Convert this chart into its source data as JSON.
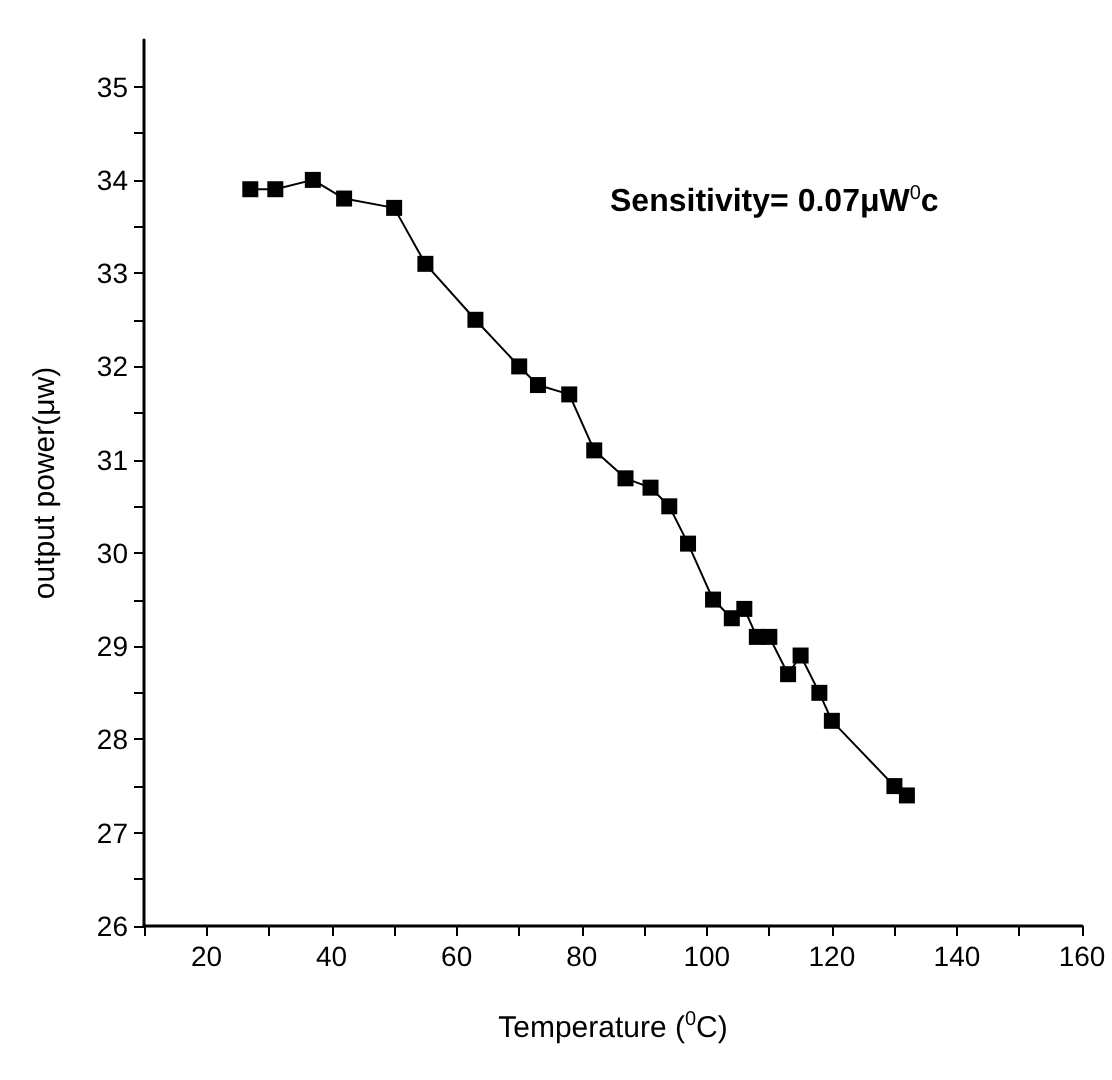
{
  "chart_data": {
    "type": "line",
    "xlabel": "Temperature ($^{0}$C)",
    "ylabel": "output power(μw)",
    "annotations": [
      "Sensitivity= 0.07μW$^{0}$c"
    ],
    "series": [
      {
        "color": "#000000",
        "x": [
          27,
          31,
          37,
          42,
          50,
          55,
          63,
          70,
          73,
          78,
          82,
          87,
          91,
          94,
          97,
          101,
          104,
          106,
          108,
          110,
          113,
          115,
          118,
          120,
          130,
          132
        ],
        "values": [
          33.9,
          33.9,
          34.0,
          33.8,
          33.7,
          33.1,
          32.5,
          32.0,
          31.8,
          31.7,
          31.1,
          30.8,
          30.7,
          30.5,
          30.1,
          29.5,
          29.3,
          29.4,
          29.1,
          29.1,
          28.7,
          28.9,
          28.5,
          28.2,
          27.5,
          27.4
        ]
      }
    ],
    "xlim": [
      10,
      160
    ],
    "ylim": [
      26,
      35.5
    ],
    "xticks": [
      {
        "value": 10,
        "label": null
      },
      20,
      {
        "value": 30,
        "label": null
      },
      40,
      {
        "value": 50,
        "label": null
      },
      60,
      {
        "value": 70,
        "label": null
      },
      80,
      {
        "value": 90,
        "label": null
      },
      100,
      {
        "value": 110,
        "label": null
      },
      120,
      {
        "value": 130,
        "label": null
      },
      140,
      {
        "value": 150,
        "label": null
      },
      160
    ],
    "yticks": [
      26,
      {
        "value": 26.5,
        "label": null
      },
      27,
      {
        "value": 27.5,
        "label": null
      },
      28,
      {
        "value": 28.5,
        "label": null
      },
      29,
      {
        "value": 29.5,
        "label": null
      },
      30,
      {
        "value": 30.5,
        "label": null
      },
      31,
      {
        "value": 31.5,
        "label": null
      },
      32,
      {
        "value": 32.5,
        "label": null
      },
      33,
      {
        "value": 33.5,
        "label": null
      },
      34,
      {
        "value": 34.5,
        "label": null
      },
      35
    ],
    "grid": false,
    "marker": "square",
    "line_style": "solid"
  }
}
